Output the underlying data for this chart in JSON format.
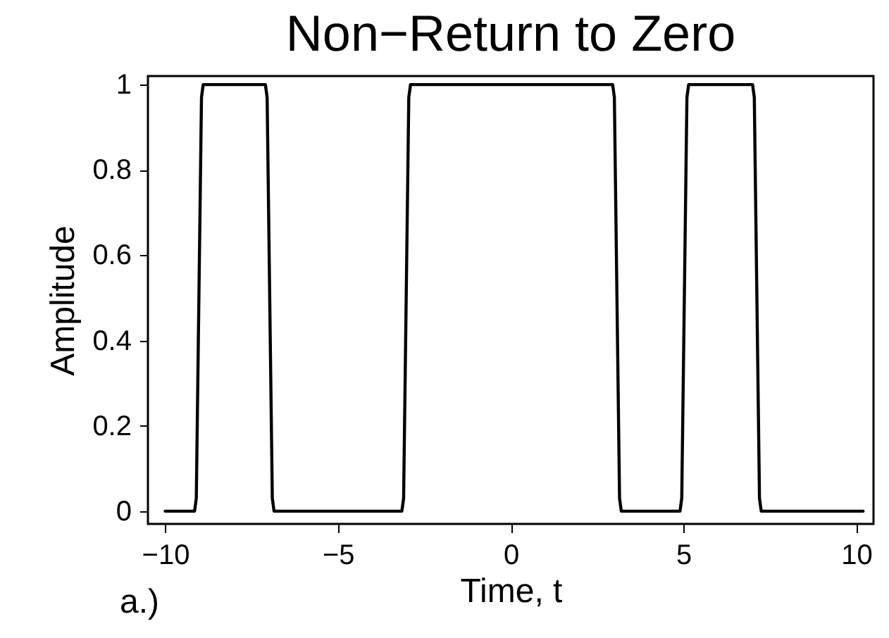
{
  "chart_data": {
    "type": "line",
    "title": "Non−Return to Zero",
    "xlabel": "Time, t",
    "ylabel": "Amplitude",
    "annotations": [
      "a.)"
    ],
    "x": [
      -10,
      -9.15,
      -9.1,
      -8.95,
      -8.9,
      -7.1,
      -7.05,
      -6.9,
      -6.85,
      -3.15,
      -3.1,
      -2.95,
      -2.9,
      2.95,
      3.0,
      3.15,
      3.2,
      4.9,
      4.95,
      5.1,
      5.15,
      7.0,
      7.05,
      7.2,
      7.25,
      10.2
    ],
    "series": [
      {
        "color": "#000000",
        "values": [
          0,
          0,
          0.03,
          0.97,
          1,
          1,
          0.97,
          0.03,
          0,
          0,
          0.03,
          0.97,
          1,
          1,
          0.97,
          0.03,
          0,
          0,
          0.03,
          0.97,
          1,
          1,
          0.97,
          0.03,
          0,
          0
        ]
      }
    ],
    "xlim": [
      -10.5,
      10.5
    ],
    "ylim": [
      -0.03,
      1.02
    ],
    "xticks": [
      -10,
      -5,
      0,
      5,
      10
    ],
    "yticks": [
      0,
      0.2,
      0.4,
      0.6,
      0.8,
      1
    ],
    "grid": false,
    "marker": "none",
    "line_style": "solid"
  }
}
